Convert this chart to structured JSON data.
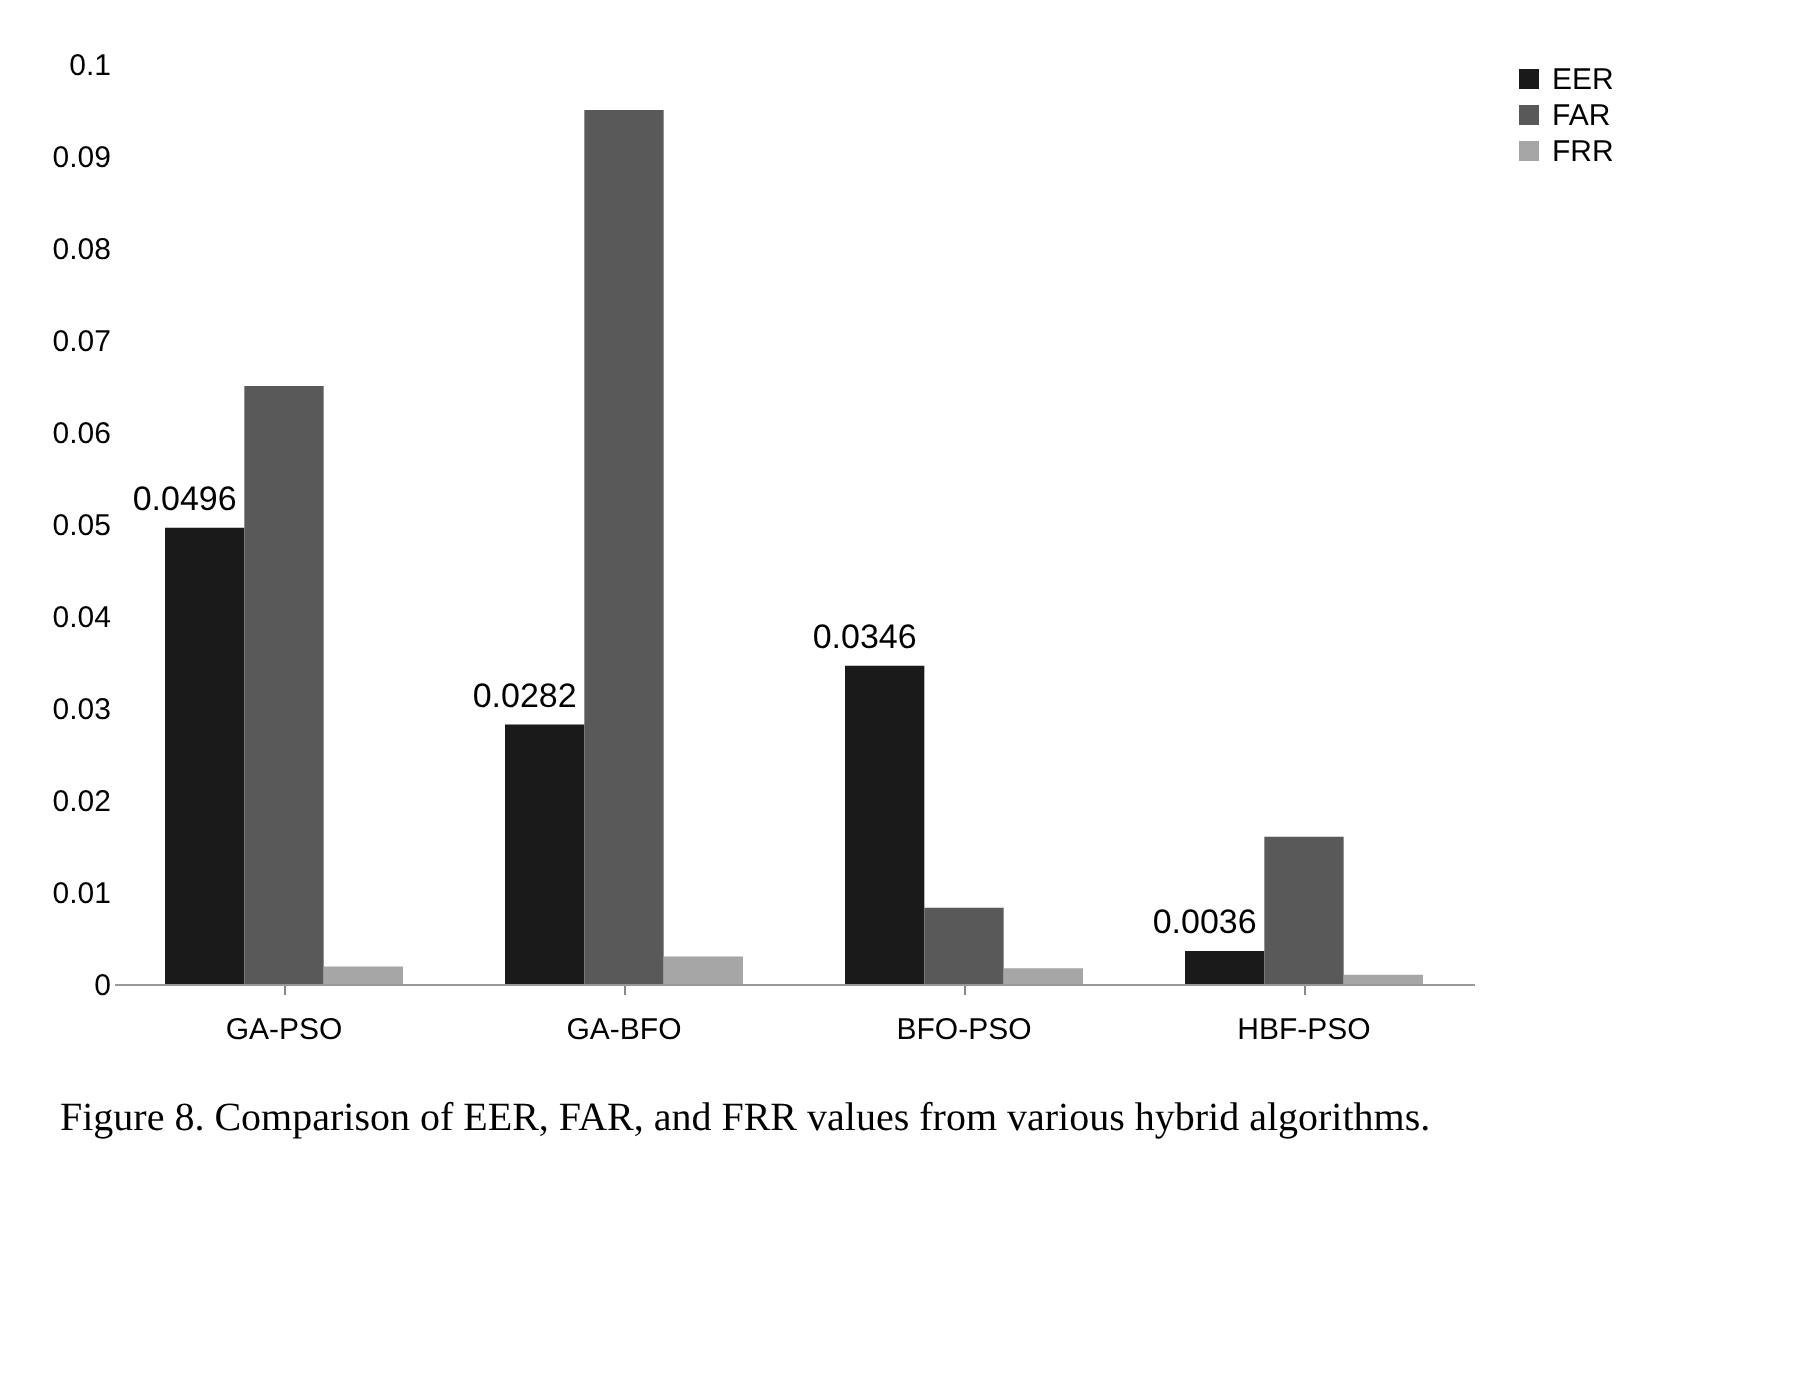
{
  "chart_data": {
    "type": "bar",
    "categories": [
      "GA-PSO",
      "GA-BFO",
      "BFO-PSO",
      "HBF-PSO"
    ],
    "series": [
      {
        "name": "EER",
        "color": "#1a1a1a",
        "values": [
          0.0496,
          0.0282,
          0.0346,
          0.0036
        ],
        "value_labels": [
          "0.0496",
          "0.0282",
          "0.0346",
          "0.0036"
        ]
      },
      {
        "name": "FAR",
        "color": "#595959",
        "values": [
          0.065,
          0.095,
          0.0083,
          0.016
        ]
      },
      {
        "name": "FRR",
        "color": "#a6a6a6",
        "values": [
          0.0019,
          0.003,
          0.0017,
          0.001
        ]
      }
    ],
    "ylim": [
      0,
      0.1
    ],
    "yticks": [
      0,
      0.01,
      0.02,
      0.03,
      0.04,
      0.05,
      0.06,
      0.07,
      0.08,
      0.09,
      0.1
    ],
    "grid": false,
    "legend": "right",
    "annotations": [
      "Figure 8. Comparison of EER, FAR, and FRR values from various hybrid algorithms."
    ]
  }
}
